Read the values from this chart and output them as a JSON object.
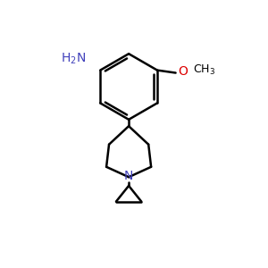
{
  "background_color": "#ffffff",
  "line_color": "#000000",
  "n_color": "#4040bb",
  "o_color": "#dd0000",
  "bond_width": 1.8,
  "figsize": [
    3.0,
    3.0
  ],
  "dpi": 100
}
